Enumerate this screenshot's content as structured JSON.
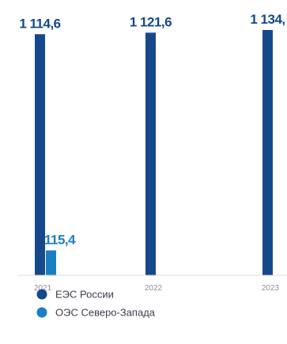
{
  "chart_data": {
    "type": "bar",
    "categories": [
      "2021",
      "2022",
      "2023"
    ],
    "series": [
      {
        "name": "ЕЭС России",
        "values": [
          1114.6,
          1121.6,
          1134.0
        ],
        "labels": [
          "1 114,6",
          "1 121,6",
          "1 134,"
        ],
        "color": "#16498c"
      },
      {
        "name": "ОЭС Северо-Запада",
        "values": [
          115.4,
          null,
          null
        ],
        "labels": [
          "115,4",
          "",
          ""
        ],
        "color": "#1a7fc1"
      }
    ],
    "ylim": [
      0,
      1134.0
    ],
    "grid": false,
    "legend": "bottom-left",
    "title": "",
    "xlabel": "",
    "ylabel": ""
  }
}
